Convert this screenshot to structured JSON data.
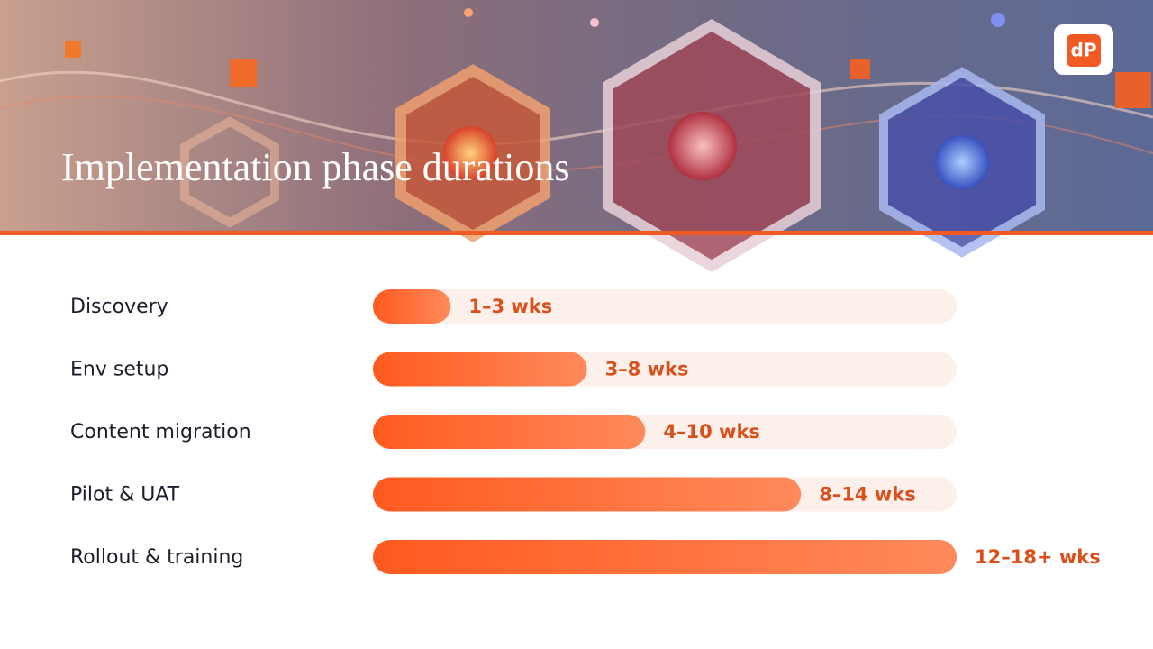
{
  "logo": "dP",
  "chart_data": {
    "type": "bar",
    "orientation": "horizontal",
    "title": "Implementation phase durations",
    "categories": [
      "Discovery",
      "Env setup",
      "Content migration",
      "Pilot & UAT",
      "Rollout & training"
    ],
    "values": [
      2,
      5.5,
      7,
      11,
      15
    ],
    "value_labels": [
      "1–3 wks",
      "3–8 wks",
      "4–10 wks",
      "8–14 wks",
      "12–18+ wks"
    ],
    "color": "#ff5a1f",
    "xlim": [
      0,
      15
    ]
  }
}
